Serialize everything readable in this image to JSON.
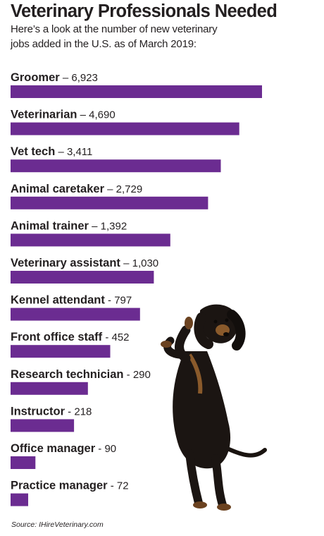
{
  "title": "Veterinary Professionals Needed",
  "subtitle": "Here’s a look at the number of new veterinary jobs added in the U.S. as of March 2019:",
  "source": "Source: IHireVeterinary.com",
  "colors": {
    "bar": "#6b2c91",
    "text": "#231f20"
  },
  "illustration": "dachshund-standing-photo",
  "chart_data": {
    "type": "bar",
    "orientation": "horizontal",
    "categories": [
      "Groomer",
      "Veterinarian",
      "Vet tech",
      "Animal caretaker",
      "Animal trainer",
      "Veterinary assistant",
      "Kennel attendant",
      "Front office staff",
      "Research technician",
      "Instructor",
      "Office manager",
      "Practice manager"
    ],
    "values": [
      6923,
      4690,
      3411,
      2729,
      1392,
      1030,
      797,
      452,
      290,
      218,
      90,
      72
    ],
    "value_labels": [
      "6,923",
      "4,690",
      "3,411",
      "2,729",
      "1,392",
      "1,030",
      "797",
      "452",
      "290",
      "218",
      "90",
      "72"
    ],
    "separators": [
      "–",
      "–",
      "–",
      "–",
      "–",
      "–",
      "-",
      "-",
      "-",
      "-",
      "-",
      "-"
    ],
    "grid": false
  }
}
